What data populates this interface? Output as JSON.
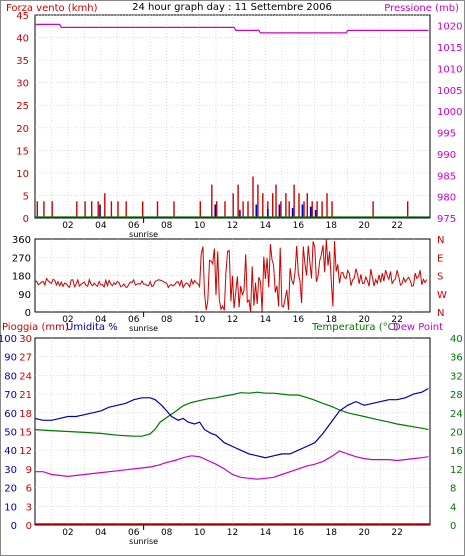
{
  "title": "24 hour graph day : 11 Settembre 2006",
  "x_axis": {
    "hour_labels": [
      "02",
      "04",
      "06",
      "08",
      "10",
      "12",
      "14",
      "16",
      "18",
      "20",
      "22"
    ],
    "marker": "sunrise"
  },
  "colors": {
    "wind": "#cc0000",
    "gust": "#0000cc",
    "pressure": "#cc00cc",
    "humidity": "#0000aa",
    "temperature": "#007700",
    "dew_point": "#cc00cc",
    "rain": "#cc0000",
    "grid": "#c8c8c8"
  },
  "chart_data": [
    {
      "type": "bar",
      "left_label": "Forza vento (kmh)",
      "right_label": "Pressione (mb)",
      "y_left_ticks": [
        "0",
        "5",
        "10",
        "15",
        "20",
        "25",
        "30",
        "35",
        "40",
        "45"
      ],
      "y_right_ticks": [
        "975",
        "980",
        "985",
        "990",
        "995",
        "1000",
        "1005",
        "1010",
        "1015",
        "1020"
      ],
      "ylim_left": [
        0,
        45
      ],
      "ylim_right": [
        975,
        1022.5
      ],
      "wind_bars": [
        [
          0.1,
          3.7
        ],
        [
          0.5,
          3.7
        ],
        [
          1.0,
          3.7
        ],
        [
          2.5,
          3.7
        ],
        [
          3.0,
          3.7
        ],
        [
          3.4,
          3.7
        ],
        [
          3.8,
          3.7
        ],
        [
          4.2,
          5.5
        ],
        [
          4.6,
          3.7
        ],
        [
          5.0,
          3.7
        ],
        [
          5.5,
          3.7
        ],
        [
          6.5,
          3.7
        ],
        [
          7.4,
          3.7
        ],
        [
          8.4,
          3.7
        ],
        [
          10.0,
          3.7
        ],
        [
          10.7,
          7.4
        ],
        [
          11.0,
          3.7
        ],
        [
          11.5,
          3.7
        ],
        [
          12.0,
          5.5
        ],
        [
          12.3,
          7.4
        ],
        [
          12.6,
          3.7
        ],
        [
          12.9,
          3.7
        ],
        [
          13.2,
          9.2
        ],
        [
          13.5,
          7.4
        ],
        [
          13.8,
          5.5
        ],
        [
          14.1,
          3.7
        ],
        [
          14.4,
          5.5
        ],
        [
          14.6,
          7.4
        ],
        [
          14.9,
          3.7
        ],
        [
          15.2,
          5.5
        ],
        [
          15.4,
          3.7
        ],
        [
          15.7,
          7.4
        ],
        [
          16.0,
          5.5
        ],
        [
          16.3,
          3.7
        ],
        [
          16.5,
          5.5
        ],
        [
          16.8,
          3.7
        ],
        [
          17.1,
          3.7
        ],
        [
          17.4,
          3.7
        ],
        [
          17.7,
          5.5
        ],
        [
          18.0,
          3.7
        ],
        [
          20.5,
          3.7
        ],
        [
          22.6,
          3.7
        ]
      ],
      "gust_bars": [
        [
          3.9,
          3.0
        ],
        [
          10.9,
          3.0
        ],
        [
          12.4,
          1.8
        ],
        [
          13.4,
          3.0
        ],
        [
          14.1,
          2.0
        ],
        [
          14.8,
          3.0
        ],
        [
          15.6,
          2.2
        ],
        [
          16.2,
          3.0
        ],
        [
          16.7,
          2.5
        ],
        [
          17.0,
          1.8
        ]
      ],
      "pressure": [
        [
          0,
          1020.3
        ],
        [
          1.5,
          1020.3
        ],
        [
          1.6,
          1019.6
        ],
        [
          12.1,
          1019.6
        ],
        [
          12.2,
          1018.9
        ],
        [
          13.6,
          1018.9
        ],
        [
          13.7,
          1018.3
        ],
        [
          18.9,
          1018.3
        ],
        [
          19.0,
          1018.9
        ],
        [
          23.9,
          1018.9
        ]
      ]
    },
    {
      "type": "line",
      "y_ticks": [
        "0",
        "90",
        "180",
        "270",
        "360"
      ],
      "y_right_ticks": [
        "N",
        "E",
        "S",
        "W",
        "N"
      ],
      "ylim": [
        0,
        360
      ]
    },
    {
      "type": "line",
      "label_rain": "Pioggia (mm)",
      "label_humidity": "Umidita %",
      "label_temperature": "Temperatura (°C)",
      "label_dew": "Dew Point",
      "humidity_ticks": [
        "0",
        "10",
        "20",
        "30",
        "40",
        "50",
        "60",
        "70",
        "80",
        "90",
        "100"
      ],
      "rain_ticks": [
        "0",
        "3",
        "6",
        "9",
        "12",
        "15",
        "18",
        "21",
        "24",
        "27",
        "30"
      ],
      "temp_ticks": [
        "0",
        "4",
        "8",
        "12",
        "16",
        "20",
        "24",
        "28",
        "32",
        "36",
        "40"
      ],
      "ylim_humidity": [
        0,
        100
      ],
      "ylim_temperature": [
        0,
        40
      ],
      "humidity": [
        [
          0,
          57
        ],
        [
          0.5,
          56
        ],
        [
          1.0,
          56
        ],
        [
          1.5,
          57
        ],
        [
          2.0,
          58
        ],
        [
          2.5,
          58
        ],
        [
          3.0,
          59
        ],
        [
          3.5,
          60
        ],
        [
          4.0,
          61
        ],
        [
          4.5,
          63
        ],
        [
          5.0,
          64
        ],
        [
          5.5,
          65
        ],
        [
          6.0,
          67
        ],
        [
          6.5,
          68
        ],
        [
          7.0,
          68
        ],
        [
          7.3,
          67
        ],
        [
          7.7,
          64
        ],
        [
          8.0,
          61
        ],
        [
          8.3,
          58
        ],
        [
          8.7,
          56
        ],
        [
          9.0,
          57
        ],
        [
          9.3,
          55
        ],
        [
          9.7,
          54
        ],
        [
          10.0,
          55
        ],
        [
          10.3,
          51
        ],
        [
          10.7,
          49
        ],
        [
          11.0,
          48
        ],
        [
          11.5,
          44
        ],
        [
          12.0,
          42
        ],
        [
          12.5,
          40
        ],
        [
          13.0,
          38
        ],
        [
          13.5,
          37
        ],
        [
          14.0,
          36
        ],
        [
          14.5,
          37
        ],
        [
          15.0,
          38
        ],
        [
          15.5,
          38
        ],
        [
          16.0,
          40
        ],
        [
          16.5,
          42
        ],
        [
          17.0,
          44
        ],
        [
          17.5,
          49
        ],
        [
          18.0,
          55
        ],
        [
          18.5,
          61
        ],
        [
          19.0,
          64
        ],
        [
          19.5,
          66
        ],
        [
          20.0,
          64
        ],
        [
          20.5,
          65
        ],
        [
          21.0,
          66
        ],
        [
          21.5,
          67
        ],
        [
          22.0,
          67
        ],
        [
          22.5,
          68
        ],
        [
          23.0,
          70
        ],
        [
          23.5,
          71
        ],
        [
          23.9,
          73
        ]
      ],
      "temperature": [
        [
          0,
          20.4
        ],
        [
          1.0,
          20.2
        ],
        [
          2.0,
          20.0
        ],
        [
          3.0,
          19.8
        ],
        [
          4.0,
          19.6
        ],
        [
          5.0,
          19.2
        ],
        [
          6.0,
          19.0
        ],
        [
          6.5,
          19.0
        ],
        [
          7.0,
          19.5
        ],
        [
          7.3,
          20.5
        ],
        [
          7.6,
          22.0
        ],
        [
          8.0,
          23.0
        ],
        [
          8.5,
          24.2
        ],
        [
          9.0,
          25.5
        ],
        [
          9.5,
          26.2
        ],
        [
          10.0,
          26.6
        ],
        [
          10.5,
          27.0
        ],
        [
          11.0,
          27.2
        ],
        [
          11.5,
          27.6
        ],
        [
          12.0,
          27.9
        ],
        [
          12.5,
          28.3
        ],
        [
          13.0,
          28.2
        ],
        [
          13.5,
          28.4
        ],
        [
          14.0,
          28.2
        ],
        [
          14.5,
          28.2
        ],
        [
          15.0,
          28.0
        ],
        [
          15.5,
          27.8
        ],
        [
          16.0,
          27.8
        ],
        [
          16.5,
          27.3
        ],
        [
          17.0,
          26.7
        ],
        [
          17.5,
          26.0
        ],
        [
          18.0,
          25.4
        ],
        [
          18.5,
          24.6
        ],
        [
          19.0,
          24.0
        ],
        [
          19.5,
          23.6
        ],
        [
          20.0,
          23.2
        ],
        [
          20.5,
          22.8
        ],
        [
          21.0,
          22.4
        ],
        [
          21.5,
          22.0
        ],
        [
          22.0,
          21.6
        ],
        [
          22.5,
          21.3
        ],
        [
          23.0,
          21.0
        ],
        [
          23.5,
          20.7
        ],
        [
          23.9,
          20.4
        ]
      ],
      "dew_point": [
        [
          0,
          11.4
        ],
        [
          0.5,
          11.4
        ],
        [
          1.0,
          10.8
        ],
        [
          1.5,
          10.6
        ],
        [
          2.0,
          10.4
        ],
        [
          3.0,
          10.8
        ],
        [
          4.0,
          11.2
        ],
        [
          5.0,
          11.6
        ],
        [
          6.0,
          12.0
        ],
        [
          7.0,
          12.4
        ],
        [
          7.5,
          12.8
        ],
        [
          8.0,
          13.4
        ],
        [
          8.5,
          13.8
        ],
        [
          9.0,
          14.4
        ],
        [
          9.5,
          14.8
        ],
        [
          10.0,
          14.6
        ],
        [
          10.5,
          13.8
        ],
        [
          11.0,
          13.0
        ],
        [
          11.5,
          12.0
        ],
        [
          12.0,
          10.8
        ],
        [
          12.5,
          10.2
        ],
        [
          13.0,
          10.0
        ],
        [
          13.5,
          9.8
        ],
        [
          14.0,
          10.0
        ],
        [
          14.5,
          10.2
        ],
        [
          15.0,
          10.8
        ],
        [
          15.5,
          11.4
        ],
        [
          16.0,
          12.0
        ],
        [
          16.5,
          12.6
        ],
        [
          17.0,
          13.0
        ],
        [
          17.5,
          13.6
        ],
        [
          18.0,
          14.6
        ],
        [
          18.5,
          15.8
        ],
        [
          19.0,
          15.2
        ],
        [
          19.5,
          14.6
        ],
        [
          20.0,
          14.2
        ],
        [
          20.5,
          14.0
        ],
        [
          21.0,
          14.0
        ],
        [
          21.5,
          14.0
        ],
        [
          22.0,
          13.8
        ],
        [
          22.5,
          14.0
        ],
        [
          23.0,
          14.2
        ],
        [
          23.5,
          14.4
        ],
        [
          23.9,
          14.6
        ]
      ],
      "rain_mm": 0
    }
  ]
}
